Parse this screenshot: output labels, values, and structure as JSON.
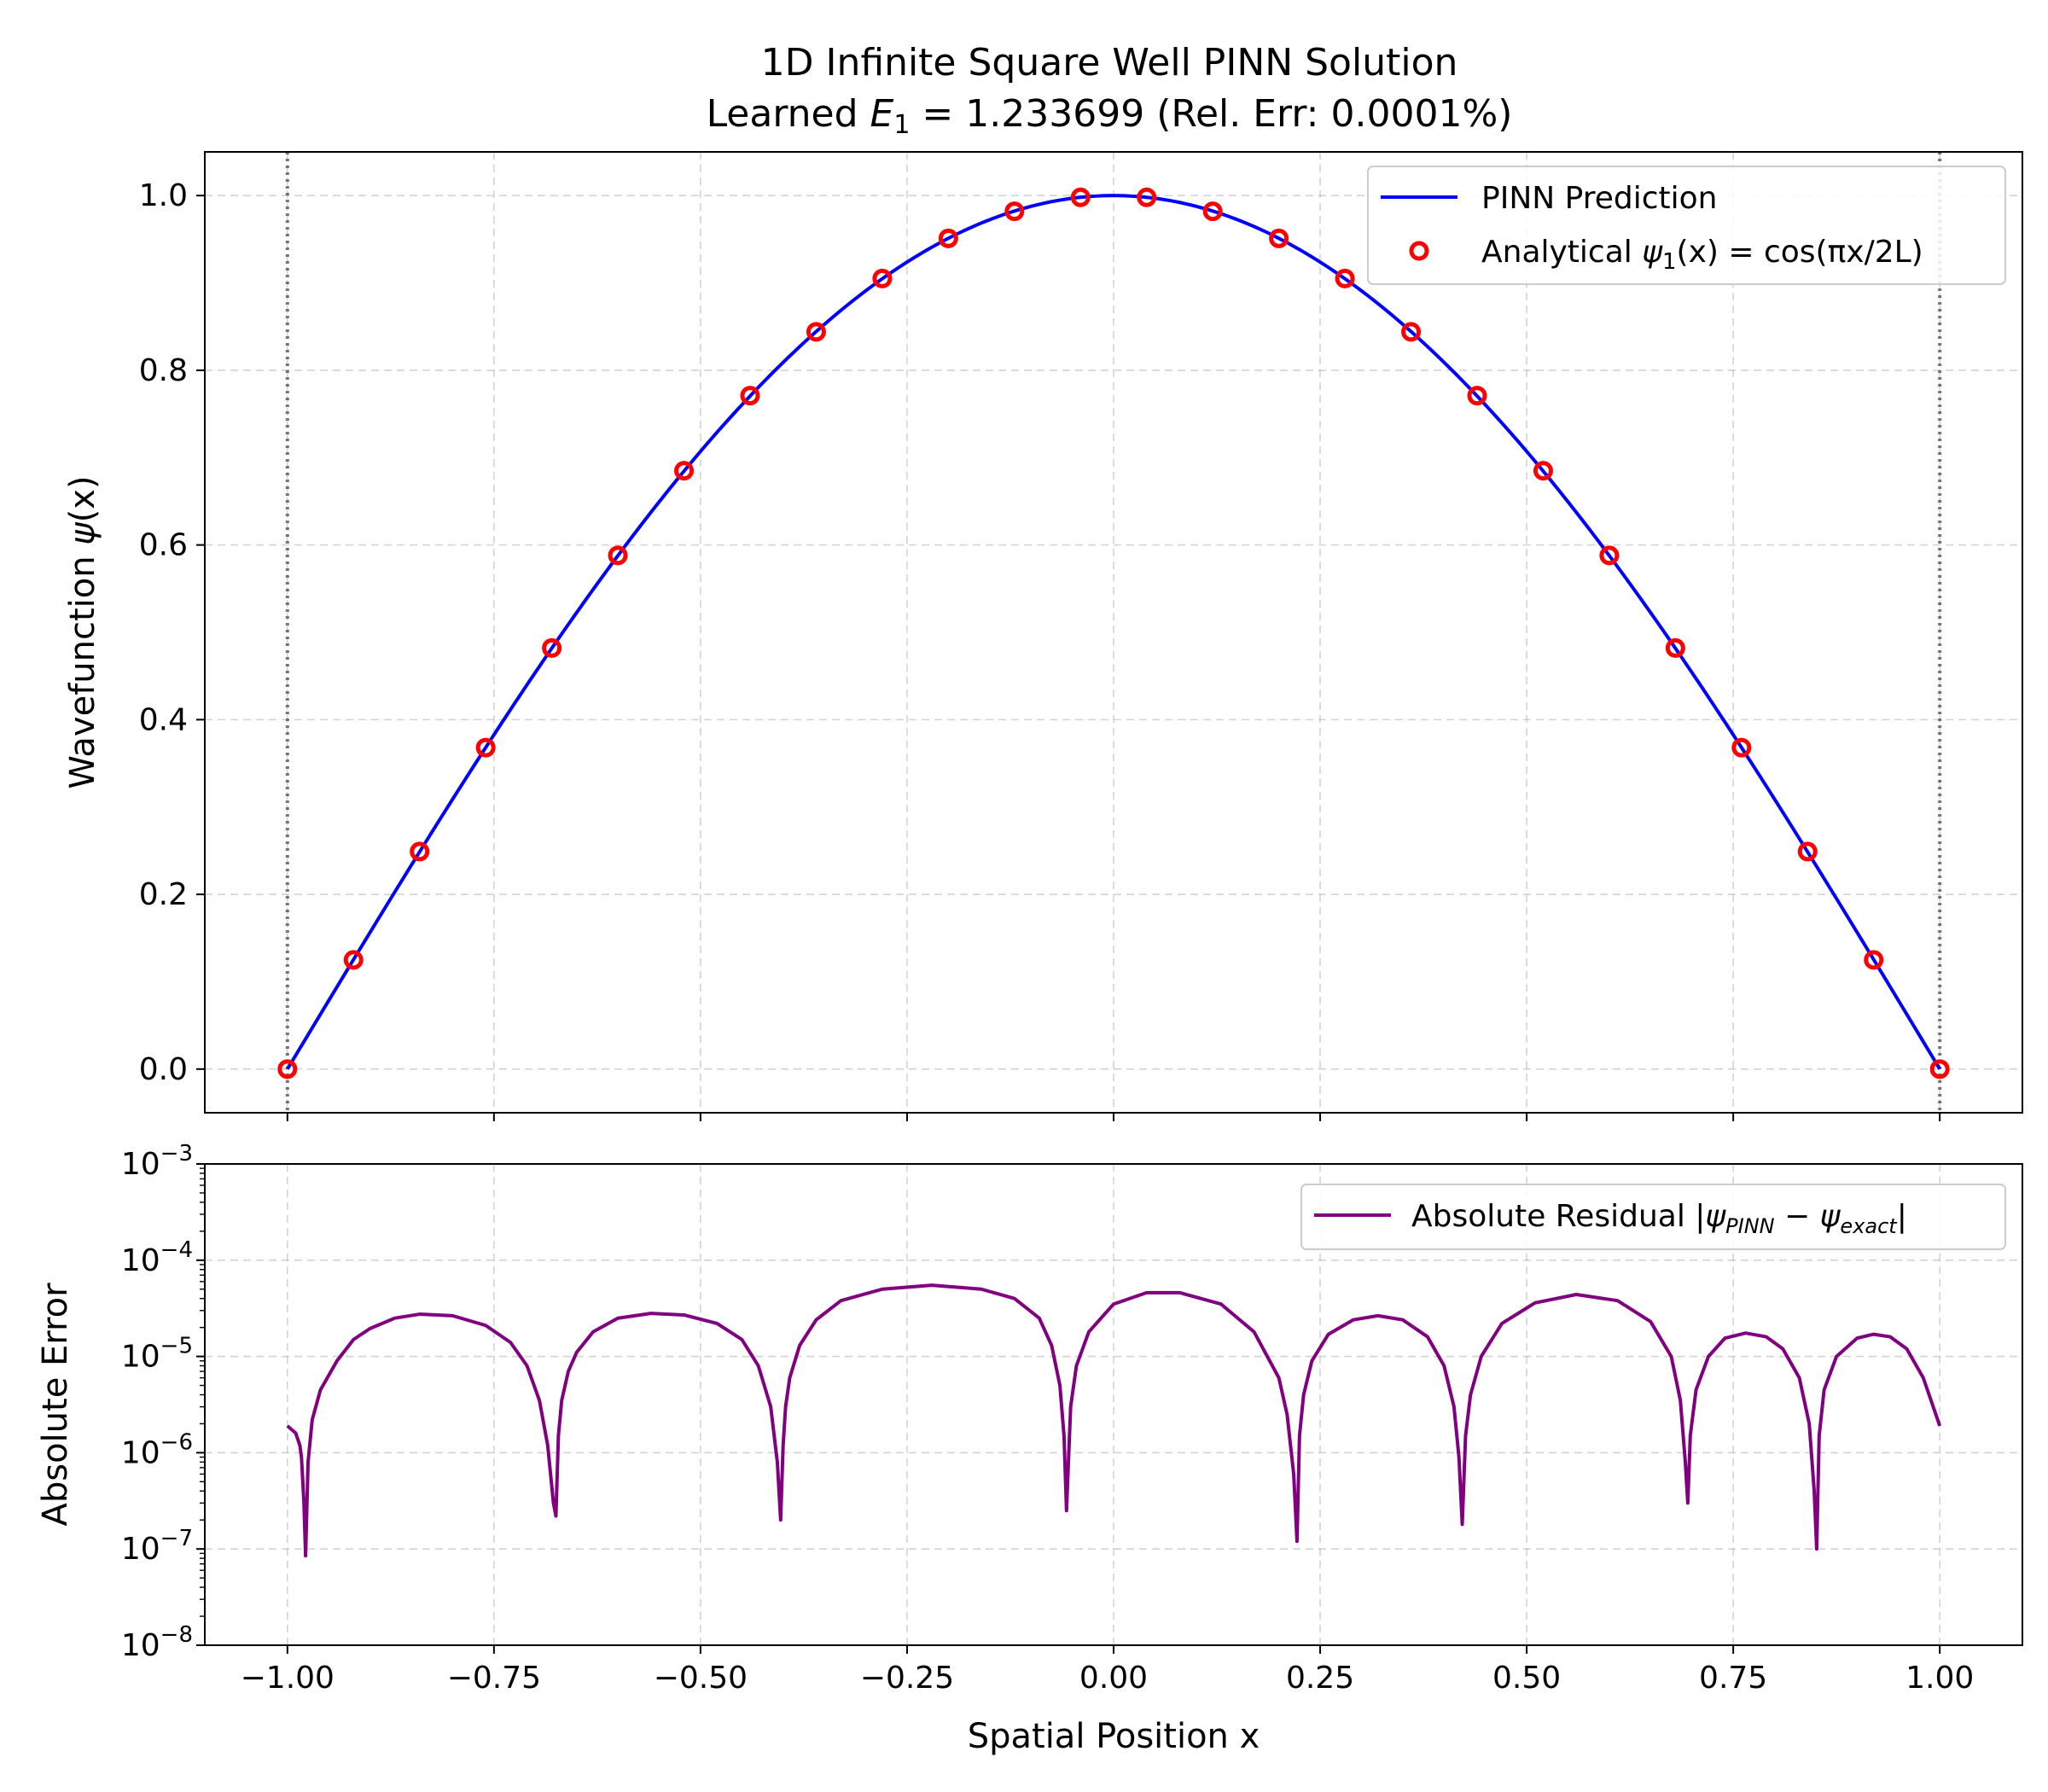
{
  "figure": {
    "title_line1": "1D Infinite Square Well PINN Solution",
    "title_line2_prefix": "Learned ",
    "title_line2_symbol": "E",
    "title_line2_sub": "1",
    "title_line2_suffix": " = 1.233699 (Rel. Err: 0.0001%)"
  },
  "colors": {
    "pinn": "#0000ff",
    "analytical": "#ff0000",
    "residual": "#800080",
    "wall": "#555555"
  },
  "chart_data": [
    {
      "type": "line",
      "panel": "top",
      "xlabel": "",
      "ylabel_prefix": "Wavefunction ",
      "ylabel_symbol": "ψ",
      "ylabel_suffix": "(x)",
      "xlim": [
        -1.1,
        1.1
      ],
      "ylim": [
        -0.05,
        1.05
      ],
      "yticks": [
        0.0,
        0.2,
        0.4,
        0.6,
        0.8,
        1.0
      ],
      "ytick_labels": [
        "0.0",
        "0.2",
        "0.4",
        "0.6",
        "0.8",
        "1.0"
      ],
      "grid": true,
      "legend": "top-right",
      "walls_x": [
        -1.0,
        1.0
      ],
      "series": [
        {
          "name": "PINN Prediction",
          "kind": "line",
          "function": "cos(pi*x/2)",
          "x_range": [
            -1.0,
            1.0
          ]
        },
        {
          "name_prefix": "Analytical ",
          "name_symbol": "ψ",
          "name_sub": "1",
          "name_suffix": "(x) = cos(πx/2L)",
          "kind": "scatter",
          "x": [
            -1.0,
            -0.92,
            -0.84,
            -0.76,
            -0.68,
            -0.6,
            -0.52,
            -0.44,
            -0.36,
            -0.28,
            -0.2,
            -0.12,
            -0.04,
            0.04,
            0.12,
            0.2,
            0.28,
            0.36,
            0.44,
            0.52,
            0.6,
            0.68,
            0.76,
            0.84,
            0.92,
            1.0
          ],
          "y": [
            0.0,
            0.125,
            0.249,
            0.368,
            0.482,
            0.588,
            0.685,
            0.771,
            0.844,
            0.905,
            0.951,
            0.982,
            0.998,
            0.998,
            0.982,
            0.951,
            0.905,
            0.844,
            0.771,
            0.685,
            0.588,
            0.482,
            0.368,
            0.249,
            0.125,
            0.0
          ]
        }
      ]
    },
    {
      "type": "line",
      "panel": "bottom",
      "xlabel": "Spatial Position x",
      "ylabel": "Absolute Error",
      "yscale": "log",
      "xlim": [
        -1.1,
        1.1
      ],
      "ylim": [
        1e-08,
        0.001
      ],
      "xticks": [
        -1.0,
        -0.75,
        -0.5,
        -0.25,
        0.0,
        0.25,
        0.5,
        0.75,
        1.0
      ],
      "xtick_labels": [
        "−1.00",
        "−0.75",
        "−0.50",
        "−0.25",
        "0.00",
        "0.25",
        "0.50",
        "0.75",
        "1.00"
      ],
      "yticks_exp": [
        -8,
        -7,
        -6,
        -5,
        -4,
        -3
      ],
      "ytick_base": "10",
      "ytick_exponents": [
        "−8",
        "−7",
        "−6",
        "−5",
        "−4",
        "−3"
      ],
      "grid": true,
      "legend": "top-right",
      "series": [
        {
          "name_prefix": "Absolute Residual |",
          "name_sym1": "ψ",
          "name_sub1": "PINN",
          "name_mid": " − ",
          "name_sym2": "ψ",
          "name_sub2": "exact",
          "name_suffix": "|",
          "kind": "line",
          "x": [
            -1.0,
            -0.99,
            -0.985,
            -0.983,
            -0.98,
            -0.978,
            -0.975,
            -0.97,
            -0.96,
            -0.94,
            -0.92,
            -0.9,
            -0.87,
            -0.84,
            -0.8,
            -0.76,
            -0.73,
            -0.71,
            -0.695,
            -0.685,
            -0.678,
            -0.675,
            -0.672,
            -0.668,
            -0.66,
            -0.65,
            -0.63,
            -0.6,
            -0.56,
            -0.52,
            -0.48,
            -0.45,
            -0.43,
            -0.415,
            -0.407,
            -0.403,
            -0.4,
            -0.397,
            -0.392,
            -0.38,
            -0.36,
            -0.33,
            -0.28,
            -0.22,
            -0.16,
            -0.12,
            -0.09,
            -0.075,
            -0.065,
            -0.06,
            -0.057,
            -0.052,
            -0.045,
            -0.03,
            0.0,
            0.04,
            0.08,
            0.13,
            0.17,
            0.2,
            0.21,
            0.218,
            0.222,
            0.225,
            0.23,
            0.24,
            0.26,
            0.29,
            0.32,
            0.35,
            0.38,
            0.4,
            0.412,
            0.418,
            0.422,
            0.426,
            0.432,
            0.445,
            0.47,
            0.51,
            0.56,
            0.61,
            0.65,
            0.675,
            0.686,
            0.692,
            0.695,
            0.698,
            0.705,
            0.72,
            0.74,
            0.765,
            0.79,
            0.81,
            0.83,
            0.842,
            0.848,
            0.851,
            0.854,
            0.86,
            0.875,
            0.9,
            0.92,
            0.94,
            0.96,
            0.98,
            1.0
          ],
          "y": [
            1.9e-06,
            1.6e-06,
            1.2e-06,
            9e-07,
            3e-07,
            8.5e-08,
            8e-07,
            2.2e-06,
            4.5e-06,
            9e-06,
            1.5e-05,
            1.95e-05,
            2.5e-05,
            2.75e-05,
            2.65e-05,
            2.1e-05,
            1.4e-05,
            8e-06,
            3.5e-06,
            1.2e-06,
            3e-07,
            2.2e-07,
            1.5e-06,
            3.5e-06,
            7e-06,
            1.1e-05,
            1.8e-05,
            2.5e-05,
            2.8e-05,
            2.7e-05,
            2.2e-05,
            1.5e-05,
            8e-06,
            3e-06,
            8e-07,
            2e-07,
            1.2e-06,
            3e-06,
            6e-06,
            1.3e-05,
            2.4e-05,
            3.8e-05,
            5e-05,
            5.5e-05,
            5e-05,
            4e-05,
            2.5e-05,
            1.3e-05,
            5e-06,
            1.5e-06,
            2.5e-07,
            3e-06,
            8e-06,
            1.8e-05,
            3.5e-05,
            4.6e-05,
            4.6e-05,
            3.5e-05,
            1.8e-05,
            6e-06,
            2.5e-06,
            6e-07,
            1.2e-07,
            1.5e-06,
            4e-06,
            9e-06,
            1.7e-05,
            2.4e-05,
            2.65e-05,
            2.4e-05,
            1.6e-05,
            8e-06,
            3e-06,
            9e-07,
            1.8e-07,
            1.5e-06,
            4e-06,
            1e-05,
            2.2e-05,
            3.6e-05,
            4.4e-05,
            3.8e-05,
            2.3e-05,
            1e-05,
            3.5e-06,
            8e-07,
            3e-07,
            1.5e-06,
            4.5e-06,
            1e-05,
            1.55e-05,
            1.75e-05,
            1.6e-05,
            1.2e-05,
            6e-06,
            2e-06,
            4e-07,
            1e-07,
            1.5e-06,
            4.5e-06,
            1e-05,
            1.55e-05,
            1.7e-05,
            1.6e-05,
            1.2e-05,
            6e-06,
            1.9e-06
          ]
        }
      ]
    }
  ]
}
